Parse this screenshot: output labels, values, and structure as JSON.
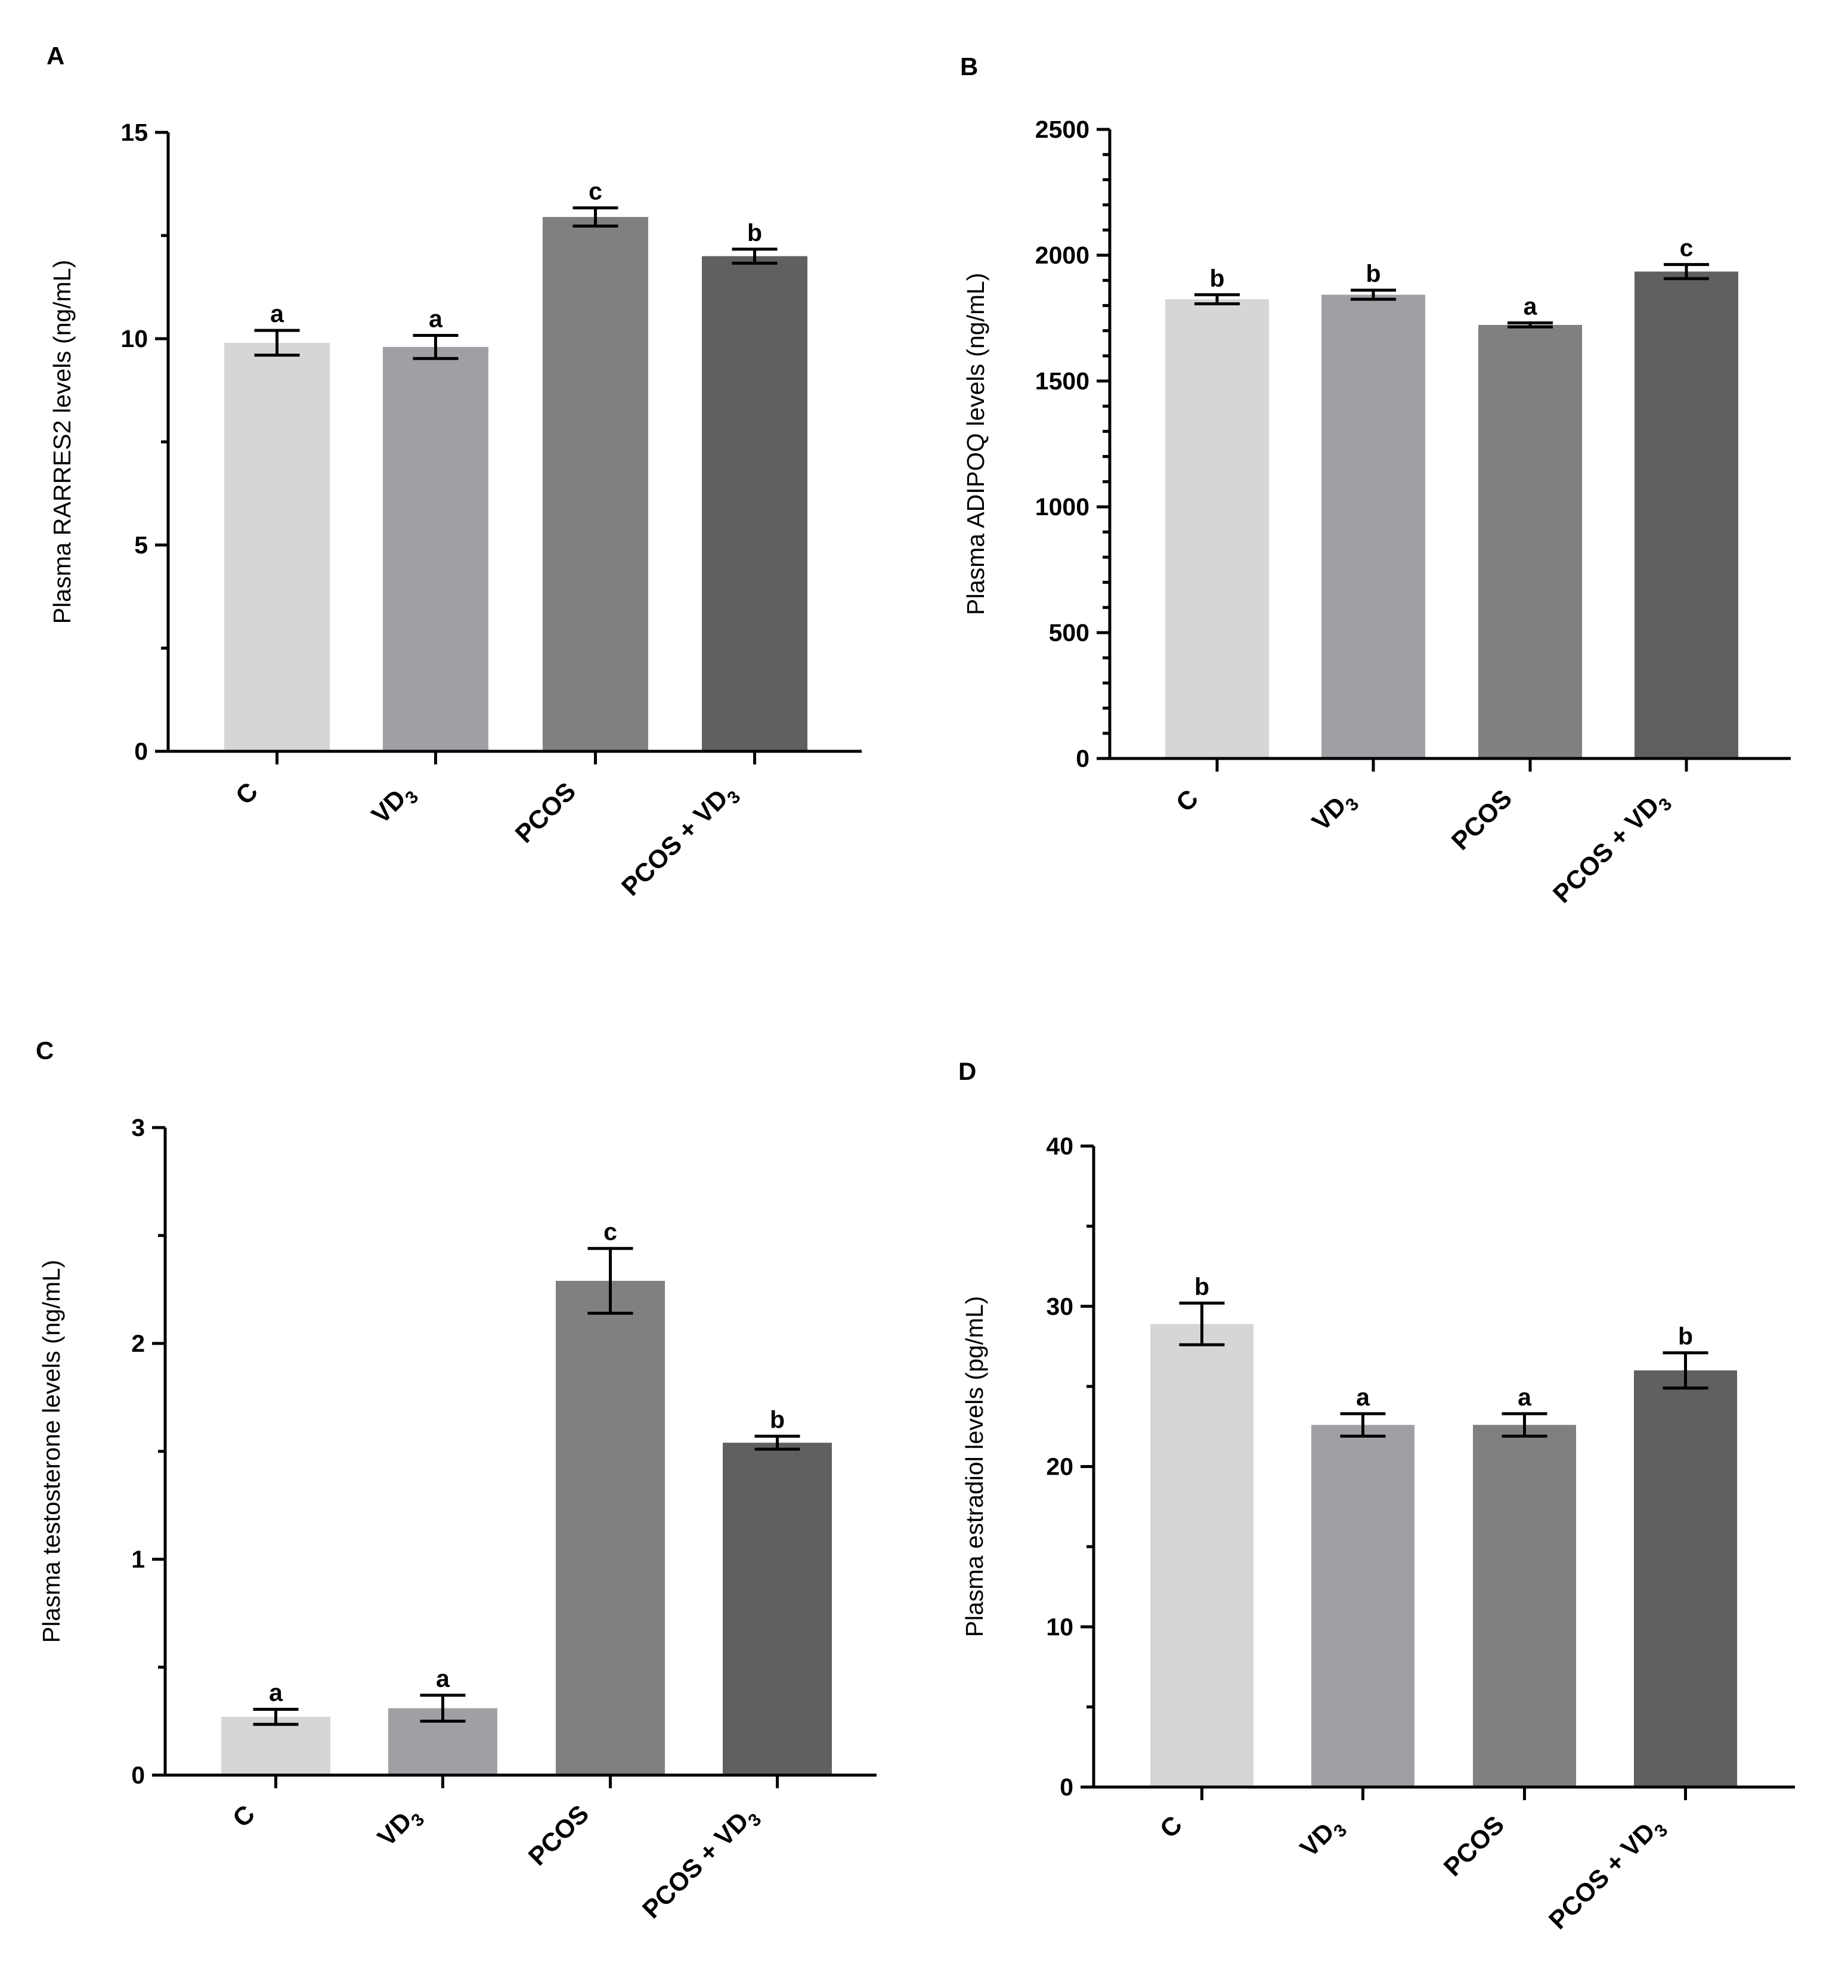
{
  "group_colors": [
    "#d6d6d6",
    "#a0a0a4",
    "#808080",
    "#606060"
  ],
  "chart_data": [
    {
      "panel": "A",
      "type": "bar",
      "ylabel": "Plasma RARRES2 levels (ng/mL)",
      "categories": [
        "C",
        "VD3",
        "PCOS",
        "PCOS + VD3"
      ],
      "values": [
        9.9,
        9.8,
        12.95,
        12.0
      ],
      "errors": [
        0.3,
        0.28,
        0.22,
        0.17
      ],
      "significance": [
        "a",
        "a",
        "c",
        "b"
      ],
      "ylim": [
        0,
        15
      ],
      "major_ticks": [
        0,
        5,
        10,
        15
      ],
      "tick_labels": [
        "0",
        "5",
        "10",
        "15"
      ],
      "minor_ticks": [
        2.5,
        7.5,
        12.5
      ]
    },
    {
      "panel": "B",
      "type": "bar",
      "ylabel": "Plasma ADIPOQ levels (ng/mL)",
      "categories": [
        "C",
        "VD3",
        "PCOS",
        "PCOS + VD3"
      ],
      "values": [
        1825,
        1843,
        1723,
        1935
      ],
      "errors": [
        18,
        18,
        8,
        28
      ],
      "significance": [
        "b",
        "b",
        "a",
        "c"
      ],
      "ylim": [
        0,
        2500
      ],
      "major_ticks": [
        0,
        500,
        1000,
        1500,
        2000,
        2500
      ],
      "tick_labels": [
        "0",
        "500",
        "1000",
        "1500",
        "2000",
        "2500"
      ],
      "minor_ticks": [
        100,
        200,
        300,
        400,
        600,
        700,
        800,
        900,
        1100,
        1200,
        1300,
        1400,
        1600,
        1700,
        1800,
        1900,
        2100,
        2200,
        2300,
        2400
      ]
    },
    {
      "panel": "C",
      "type": "bar",
      "ylabel": "Plasma testosterone levels (ng/mL)",
      "categories": [
        "C",
        "VD3",
        "PCOS",
        "PCOS + VD3"
      ],
      "values": [
        0.27,
        0.31,
        2.29,
        1.54
      ],
      "errors": [
        0.035,
        0.06,
        0.15,
        0.03
      ],
      "significance": [
        "a",
        "a",
        "c",
        "b"
      ],
      "ylim": [
        0,
        3
      ],
      "major_ticks": [
        0,
        1,
        2,
        3
      ],
      "tick_labels": [
        "0",
        "1",
        "2",
        "3"
      ],
      "minor_ticks": [
        0.5,
        1.5,
        2.5
      ]
    },
    {
      "panel": "D",
      "type": "bar",
      "ylabel": "Plasma estradiol levels (pg/mL)",
      "categories": [
        "C",
        "VD3",
        "PCOS",
        "PCOS + VD3"
      ],
      "values": [
        28.9,
        22.6,
        22.6,
        26.0
      ],
      "errors": [
        1.3,
        0.7,
        0.7,
        1.1
      ],
      "significance": [
        "b",
        "a",
        "a",
        "b"
      ],
      "ylim": [
        0,
        40
      ],
      "major_ticks": [
        0,
        10,
        20,
        30,
        40
      ],
      "tick_labels": [
        "0",
        "10",
        "20",
        "30",
        "40"
      ],
      "minor_ticks": [
        5,
        15,
        25,
        35
      ]
    }
  ]
}
